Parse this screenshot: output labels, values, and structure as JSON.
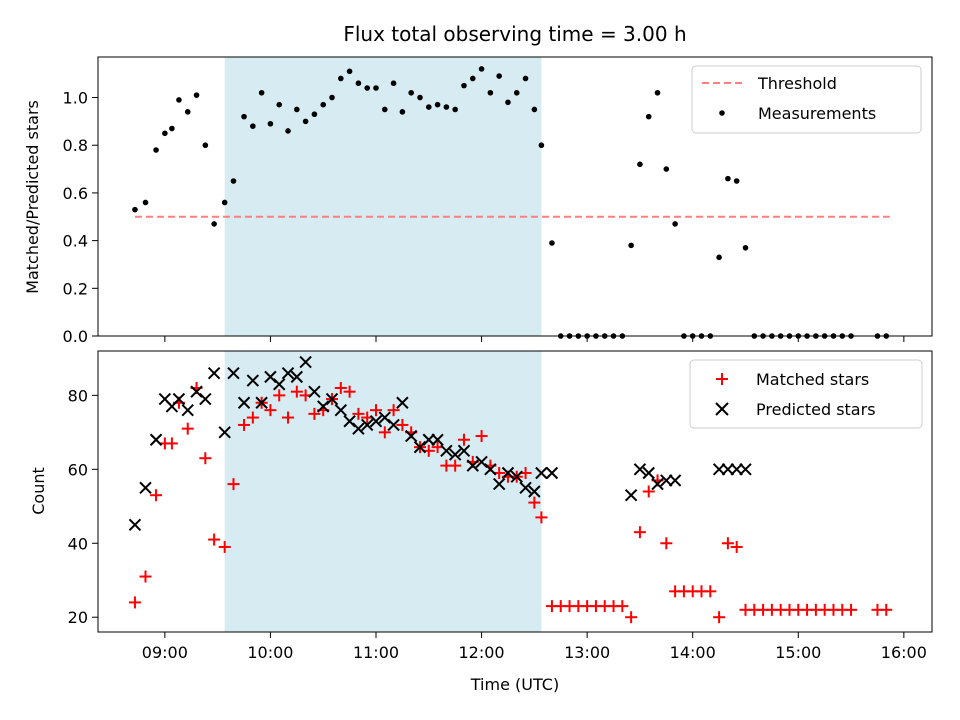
{
  "chart_data": {
    "title": "Flux total observing time = 3.00 h",
    "xlabel": "Time (UTC)",
    "x_unit": "hours UTC",
    "xlim": [
      "08:22",
      "16:16"
    ],
    "x_ticks": [
      "09:00",
      "10:00",
      "11:00",
      "12:00",
      "13:00",
      "14:00",
      "15:00",
      "16:00"
    ],
    "shaded_span": {
      "start": "09:34",
      "end": "12:34",
      "color": "#add8e6"
    },
    "panels": [
      {
        "type": "scatter",
        "ylabel": "Matched/Predicted stars",
        "ylim": [
          0,
          1.17
        ],
        "y_ticks": [
          "0.0",
          "0.2",
          "0.4",
          "0.6",
          "0.8",
          "1.0"
        ],
        "legend": "top-right",
        "series": [
          {
            "name": "Threshold",
            "style": "dashed-line",
            "color": "#ff7f7f",
            "x": [
              "08:43",
              "15:52"
            ],
            "y": [
              0.5,
              0.5
            ]
          },
          {
            "name": "Measurements",
            "style": "dot",
            "color": "#000000",
            "points": [
              [
                "08:43",
                0.53
              ],
              [
                "08:49",
                0.56
              ],
              [
                "08:55",
                0.78
              ],
              [
                "09:00",
                0.85
              ],
              [
                "09:04",
                0.87
              ],
              [
                "09:08",
                0.99
              ],
              [
                "09:13",
                0.94
              ],
              [
                "09:18",
                1.01
              ],
              [
                "09:23",
                0.8
              ],
              [
                "09:28",
                0.47
              ],
              [
                "09:34",
                0.56
              ],
              [
                "09:39",
                0.65
              ],
              [
                "09:45",
                0.92
              ],
              [
                "09:50",
                0.88
              ],
              [
                "09:55",
                1.02
              ],
              [
                "10:00",
                0.89
              ],
              [
                "10:05",
                0.97
              ],
              [
                "10:10",
                0.86
              ],
              [
                "10:15",
                0.95
              ],
              [
                "10:20",
                0.9
              ],
              [
                "10:25",
                0.93
              ],
              [
                "10:30",
                0.97
              ],
              [
                "10:35",
                1.0
              ],
              [
                "10:40",
                1.08
              ],
              [
                "10:45",
                1.11
              ],
              [
                "10:50",
                1.06
              ],
              [
                "10:55",
                1.04
              ],
              [
                "11:00",
                1.04
              ],
              [
                "11:05",
                0.95
              ],
              [
                "11:10",
                1.06
              ],
              [
                "11:15",
                0.94
              ],
              [
                "11:20",
                1.02
              ],
              [
                "11:25",
                1.0
              ],
              [
                "11:30",
                0.96
              ],
              [
                "11:35",
                0.97
              ],
              [
                "11:40",
                0.96
              ],
              [
                "11:45",
                0.95
              ],
              [
                "11:50",
                1.05
              ],
              [
                "11:55",
                1.08
              ],
              [
                "12:00",
                1.12
              ],
              [
                "12:05",
                1.02
              ],
              [
                "12:10",
                1.09
              ],
              [
                "12:15",
                0.98
              ],
              [
                "12:20",
                1.02
              ],
              [
                "12:25",
                1.08
              ],
              [
                "12:30",
                0.95
              ],
              [
                "12:34",
                0.8
              ],
              [
                "12:40",
                0.39
              ],
              [
                "12:45",
                0.0
              ],
              [
                "12:50",
                0.0
              ],
              [
                "12:55",
                0.0
              ],
              [
                "13:00",
                0.0
              ],
              [
                "13:05",
                0.0
              ],
              [
                "13:10",
                0.0
              ],
              [
                "13:15",
                0.0
              ],
              [
                "13:20",
                0.0
              ],
              [
                "13:25",
                0.38
              ],
              [
                "13:30",
                0.72
              ],
              [
                "13:35",
                0.92
              ],
              [
                "13:40",
                1.02
              ],
              [
                "13:45",
                0.7
              ],
              [
                "13:50",
                0.47
              ],
              [
                "13:55",
                0.0
              ],
              [
                "14:00",
                0.0
              ],
              [
                "14:05",
                0.0
              ],
              [
                "14:10",
                0.0
              ],
              [
                "14:15",
                0.33
              ],
              [
                "14:20",
                0.66
              ],
              [
                "14:25",
                0.65
              ],
              [
                "14:30",
                0.37
              ],
              [
                "14:35",
                0.0
              ],
              [
                "14:40",
                0.0
              ],
              [
                "14:45",
                0.0
              ],
              [
                "14:50",
                0.0
              ],
              [
                "14:55",
                0.0
              ],
              [
                "15:00",
                0.0
              ],
              [
                "15:05",
                0.0
              ],
              [
                "15:10",
                0.0
              ],
              [
                "15:15",
                0.0
              ],
              [
                "15:20",
                0.0
              ],
              [
                "15:25",
                0.0
              ],
              [
                "15:30",
                0.0
              ],
              [
                "15:45",
                0.0
              ],
              [
                "15:50",
                0.0
              ]
            ]
          }
        ]
      },
      {
        "type": "scatter",
        "ylabel": "Count",
        "ylim": [
          16,
          92
        ],
        "y_ticks": [
          "20",
          "40",
          "60",
          "80"
        ],
        "legend": "top-right",
        "series": [
          {
            "name": "Matched stars",
            "style": "plus",
            "color": "#ff0000",
            "points": [
              [
                "08:43",
                24
              ],
              [
                "08:49",
                31
              ],
              [
                "08:55",
                53
              ],
              [
                "09:00",
                67
              ],
              [
                "09:04",
                67
              ],
              [
                "09:08",
                78
              ],
              [
                "09:13",
                71
              ],
              [
                "09:18",
                82
              ],
              [
                "09:23",
                63
              ],
              [
                "09:28",
                41
              ],
              [
                "09:34",
                39
              ],
              [
                "09:39",
                56
              ],
              [
                "09:45",
                72
              ],
              [
                "09:50",
                74
              ],
              [
                "09:55",
                78
              ],
              [
                "10:00",
                76
              ],
              [
                "10:05",
                80
              ],
              [
                "10:10",
                74
              ],
              [
                "10:15",
                81
              ],
              [
                "10:20",
                80
              ],
              [
                "10:25",
                75
              ],
              [
                "10:30",
                76
              ],
              [
                "10:35",
                79
              ],
              [
                "10:40",
                82
              ],
              [
                "10:45",
                81
              ],
              [
                "10:50",
                75
              ],
              [
                "10:55",
                74
              ],
              [
                "11:00",
                76
              ],
              [
                "11:05",
                70
              ],
              [
                "11:10",
                76
              ],
              [
                "11:15",
                72
              ],
              [
                "11:20",
                70
              ],
              [
                "11:25",
                66
              ],
              [
                "11:30",
                65
              ],
              [
                "11:35",
                66
              ],
              [
                "11:40",
                61
              ],
              [
                "11:45",
                61
              ],
              [
                "11:50",
                68
              ],
              [
                "11:55",
                62
              ],
              [
                "12:00",
                69
              ],
              [
                "12:05",
                61
              ],
              [
                "12:10",
                59
              ],
              [
                "12:15",
                58
              ],
              [
                "12:20",
                58
              ],
              [
                "12:25",
                59
              ],
              [
                "12:30",
                51
              ],
              [
                "12:34",
                47
              ],
              [
                "12:40",
                23
              ],
              [
                "12:45",
                23
              ],
              [
                "12:50",
                23
              ],
              [
                "12:55",
                23
              ],
              [
                "13:00",
                23
              ],
              [
                "13:05",
                23
              ],
              [
                "13:10",
                23
              ],
              [
                "13:15",
                23
              ],
              [
                "13:20",
                23
              ],
              [
                "13:25",
                20
              ],
              [
                "13:30",
                43
              ],
              [
                "13:35",
                54
              ],
              [
                "13:40",
                57
              ],
              [
                "13:45",
                40
              ],
              [
                "13:50",
                27
              ],
              [
                "13:55",
                27
              ],
              [
                "14:00",
                27
              ],
              [
                "14:05",
                27
              ],
              [
                "14:10",
                27
              ],
              [
                "14:15",
                20
              ],
              [
                "14:20",
                40
              ],
              [
                "14:25",
                39
              ],
              [
                "14:30",
                22
              ],
              [
                "14:35",
                22
              ],
              [
                "14:40",
                22
              ],
              [
                "14:45",
                22
              ],
              [
                "14:50",
                22
              ],
              [
                "14:55",
                22
              ],
              [
                "15:00",
                22
              ],
              [
                "15:05",
                22
              ],
              [
                "15:10",
                22
              ],
              [
                "15:15",
                22
              ],
              [
                "15:20",
                22
              ],
              [
                "15:25",
                22
              ],
              [
                "15:30",
                22
              ],
              [
                "15:45",
                22
              ],
              [
                "15:50",
                22
              ]
            ]
          },
          {
            "name": "Predicted stars",
            "style": "cross",
            "color": "#000000",
            "points": [
              [
                "08:43",
                45
              ],
              [
                "08:49",
                55
              ],
              [
                "08:55",
                68
              ],
              [
                "09:00",
                79
              ],
              [
                "09:04",
                77
              ],
              [
                "09:08",
                79
              ],
              [
                "09:13",
                76
              ],
              [
                "09:18",
                81
              ],
              [
                "09:23",
                79
              ],
              [
                "09:28",
                86
              ],
              [
                "09:34",
                70
              ],
              [
                "09:39",
                86
              ],
              [
                "09:45",
                78
              ],
              [
                "09:50",
                84
              ],
              [
                "09:55",
                78
              ],
              [
                "10:00",
                85
              ],
              [
                "10:05",
                83
              ],
              [
                "10:10",
                86
              ],
              [
                "10:15",
                85
              ],
              [
                "10:20",
                89
              ],
              [
                "10:25",
                81
              ],
              [
                "10:30",
                77
              ],
              [
                "10:35",
                79
              ],
              [
                "10:40",
                76
              ],
              [
                "10:45",
                73
              ],
              [
                "10:50",
                71
              ],
              [
                "10:55",
                72
              ],
              [
                "11:00",
                73
              ],
              [
                "11:05",
                74
              ],
              [
                "11:10",
                72
              ],
              [
                "11:15",
                78
              ],
              [
                "11:20",
                69
              ],
              [
                "11:25",
                66
              ],
              [
                "11:30",
                68
              ],
              [
                "11:35",
                68
              ],
              [
                "11:40",
                65
              ],
              [
                "11:45",
                64
              ],
              [
                "11:50",
                65
              ],
              [
                "11:55",
                61
              ],
              [
                "12:00",
                62
              ],
              [
                "12:05",
                60
              ],
              [
                "12:10",
                56
              ],
              [
                "12:15",
                59
              ],
              [
                "12:20",
                58
              ],
              [
                "12:25",
                55
              ],
              [
                "12:30",
                54
              ],
              [
                "12:34",
                59
              ],
              [
                "12:40",
                59
              ],
              [
                "13:25",
                53
              ],
              [
                "13:30",
                60
              ],
              [
                "13:35",
                59
              ],
              [
                "13:40",
                56
              ],
              [
                "13:45",
                57
              ],
              [
                "13:50",
                57
              ],
              [
                "14:15",
                60
              ],
              [
                "14:20",
                60
              ],
              [
                "14:25",
                60
              ],
              [
                "14:30",
                60
              ]
            ]
          }
        ]
      }
    ]
  }
}
